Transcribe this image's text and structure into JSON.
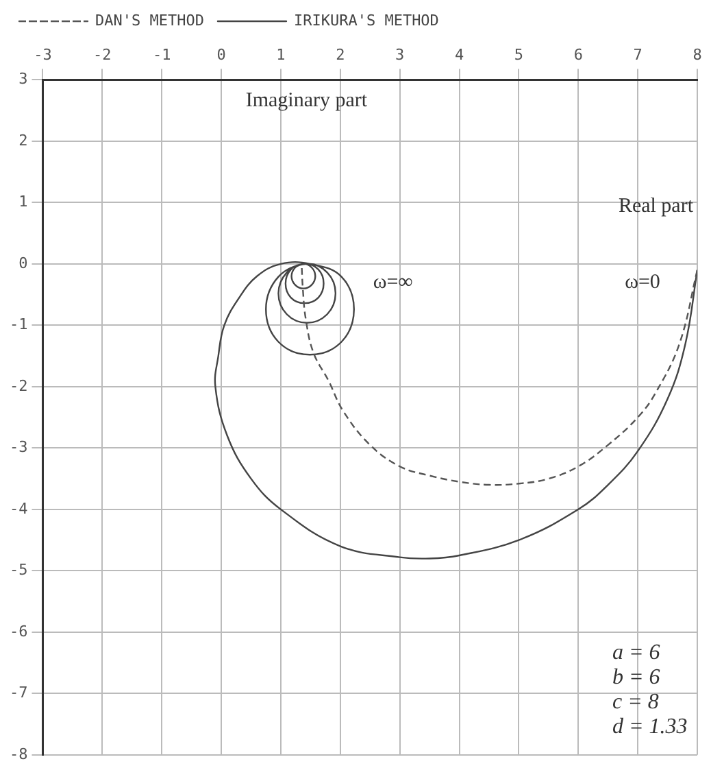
{
  "chart_data": {
    "type": "line",
    "xlabel": "Real part",
    "ylabel": "Imaginary part",
    "xlim": [
      -3,
      8
    ],
    "xticks": [
      -3,
      -2,
      -1,
      0,
      1,
      2,
      3,
      4,
      5,
      6,
      7,
      8
    ],
    "ylim": [
      -8,
      3
    ],
    "yticks": [
      -8,
      -7,
      -6,
      -5,
      -4,
      -3,
      -2,
      -1,
      0,
      1,
      2,
      3
    ],
    "grid": true,
    "legend": "top left",
    "marker": "none",
    "series": [
      {
        "name": "DAN'S METHOD",
        "color": "#555555",
        "line_style": "dashed",
        "x": [
          8,
          7.7,
          7.3,
          7,
          6.5,
          6,
          5.5,
          5,
          4.5,
          4,
          3.5,
          3,
          2.5,
          2.05,
          1.8,
          1.55,
          1.42,
          1.37,
          1.35
        ],
        "values": [
          -0.1,
          -1.3,
          -2.1,
          -2.5,
          -2.95,
          -3.3,
          -3.5,
          -3.58,
          -3.6,
          -3.55,
          -3.45,
          -3.3,
          -2.95,
          -2.4,
          -1.9,
          -1.45,
          -0.9,
          -0.4,
          0
        ]
      },
      {
        "name": "IRIKURA'S METHOD",
        "color": "#444444",
        "line_style": "solid",
        "x": [
          8,
          7.8,
          7.5,
          7,
          6.5,
          6,
          5,
          4,
          3.5,
          3,
          2,
          1,
          0.5,
          0.1,
          -0.1,
          -0.05,
          0.05,
          0.3,
          0.6,
          1,
          1.49,
          2.02,
          2.23,
          2.02,
          1.49,
          0.96,
          0.75,
          0.96,
          1.44,
          1.78,
          1.92,
          1.78,
          1.44,
          1.1,
          0.96,
          1.1,
          1.4,
          1.63,
          1.72,
          1.63,
          1.4,
          1.17,
          1.08,
          1.17,
          1.38,
          1.52,
          1.58,
          1.52,
          1.38,
          1.24,
          1.18,
          1.24,
          1.36
        ],
        "values": [
          -0.1,
          -1.3,
          -2.2,
          -3.05,
          -3.6,
          -4,
          -4.5,
          -4.75,
          -4.8,
          -4.78,
          -4.6,
          -4,
          -3.5,
          -2.8,
          -2,
          -1.5,
          -1,
          -0.55,
          -0.2,
          0,
          0,
          -0.21,
          -0.74,
          -1.27,
          -1.48,
          -1.27,
          -0.74,
          -0.21,
          0,
          -0.14,
          -0.48,
          -0.82,
          -0.96,
          -0.82,
          -0.48,
          -0.14,
          0,
          -0.09,
          -0.32,
          -0.55,
          -0.64,
          -0.55,
          -0.32,
          -0.09,
          0,
          -0.06,
          -0.2,
          -0.34,
          -0.4,
          -0.34,
          -0.2,
          -0.06,
          0
        ]
      }
    ],
    "annotations": [
      "ω=∞",
      "ω=0",
      "a = 6",
      "b = 6",
      "c = 8",
      "d = 1.33"
    ]
  }
}
